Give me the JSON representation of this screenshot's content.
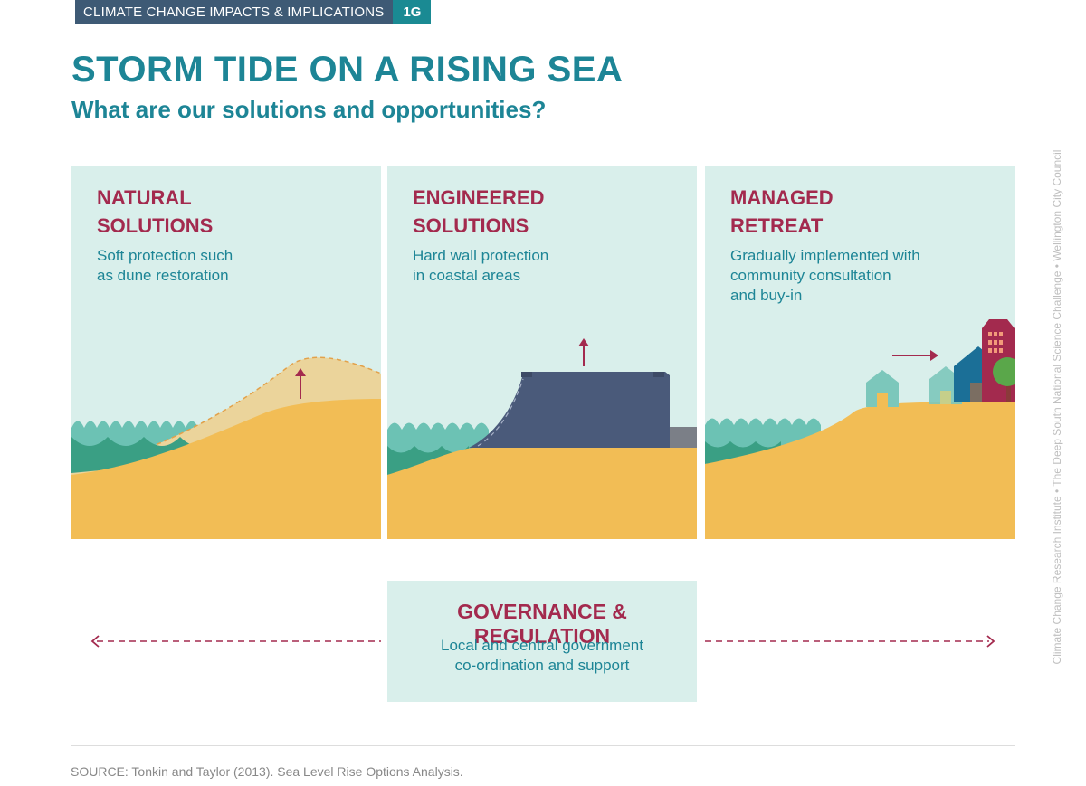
{
  "header": {
    "section_label": "CLIMATE CHANGE IMPACTS & IMPLICATIONS",
    "section_number": "1G"
  },
  "title": "STORM TIDE ON A RISING SEA",
  "subtitle": "What are our solutions and opportunities?",
  "panels": [
    {
      "title": "NATURAL\nSOLUTIONS",
      "description": "Soft protection such\nas dune restoration"
    },
    {
      "title": "ENGINEERED\nSOLUTIONS",
      "description": "Hard wall protection\nin coastal areas"
    },
    {
      "title": "MANAGED\nRETREAT",
      "description": "Gradually implemented with\ncommunity consultation\nand buy-in"
    }
  ],
  "governance": {
    "title": "GOVERNANCE & REGULATION",
    "description": "Local and central government\nco-ordination and support"
  },
  "source": "SOURCE: Tonkin and Taylor (2013). Sea Level Rise Options Analysis.",
  "side_credit": "Climate Change Research Institute  •  The Deep South National Science Challenge  •  Wellington City Council",
  "colors": {
    "panel_bg": "#d9efeb",
    "teal_text": "#1d8596",
    "maroon_text": "#a32a4e",
    "sand": "#f2bd55",
    "sea_light": "#6cc2b4",
    "sea_dark": "#3a9f84",
    "wall": "#4a5a7a"
  }
}
